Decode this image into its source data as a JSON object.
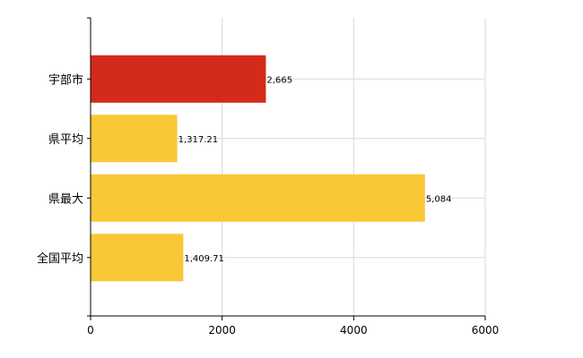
{
  "chart_data": {
    "type": "bar",
    "orientation": "horizontal",
    "categories": [
      "宇部市",
      "県平均",
      "県最大",
      "全国平均"
    ],
    "values": [
      2665,
      1317.21,
      5084,
      1409.71
    ],
    "value_labels": [
      "2,665",
      "1,317.21",
      "5,084",
      "1,409.71"
    ],
    "bar_colors": [
      "#d42a1a",
      "#f9c837",
      "#f9c837",
      "#f9c837"
    ],
    "xlim": [
      0,
      6000
    ],
    "xticks": [
      0,
      2000,
      4000,
      6000
    ],
    "xtick_labels": [
      "0",
      "2000",
      "4000",
      "6000"
    ],
    "grid": true,
    "title": "",
    "xlabel": "",
    "ylabel": ""
  }
}
